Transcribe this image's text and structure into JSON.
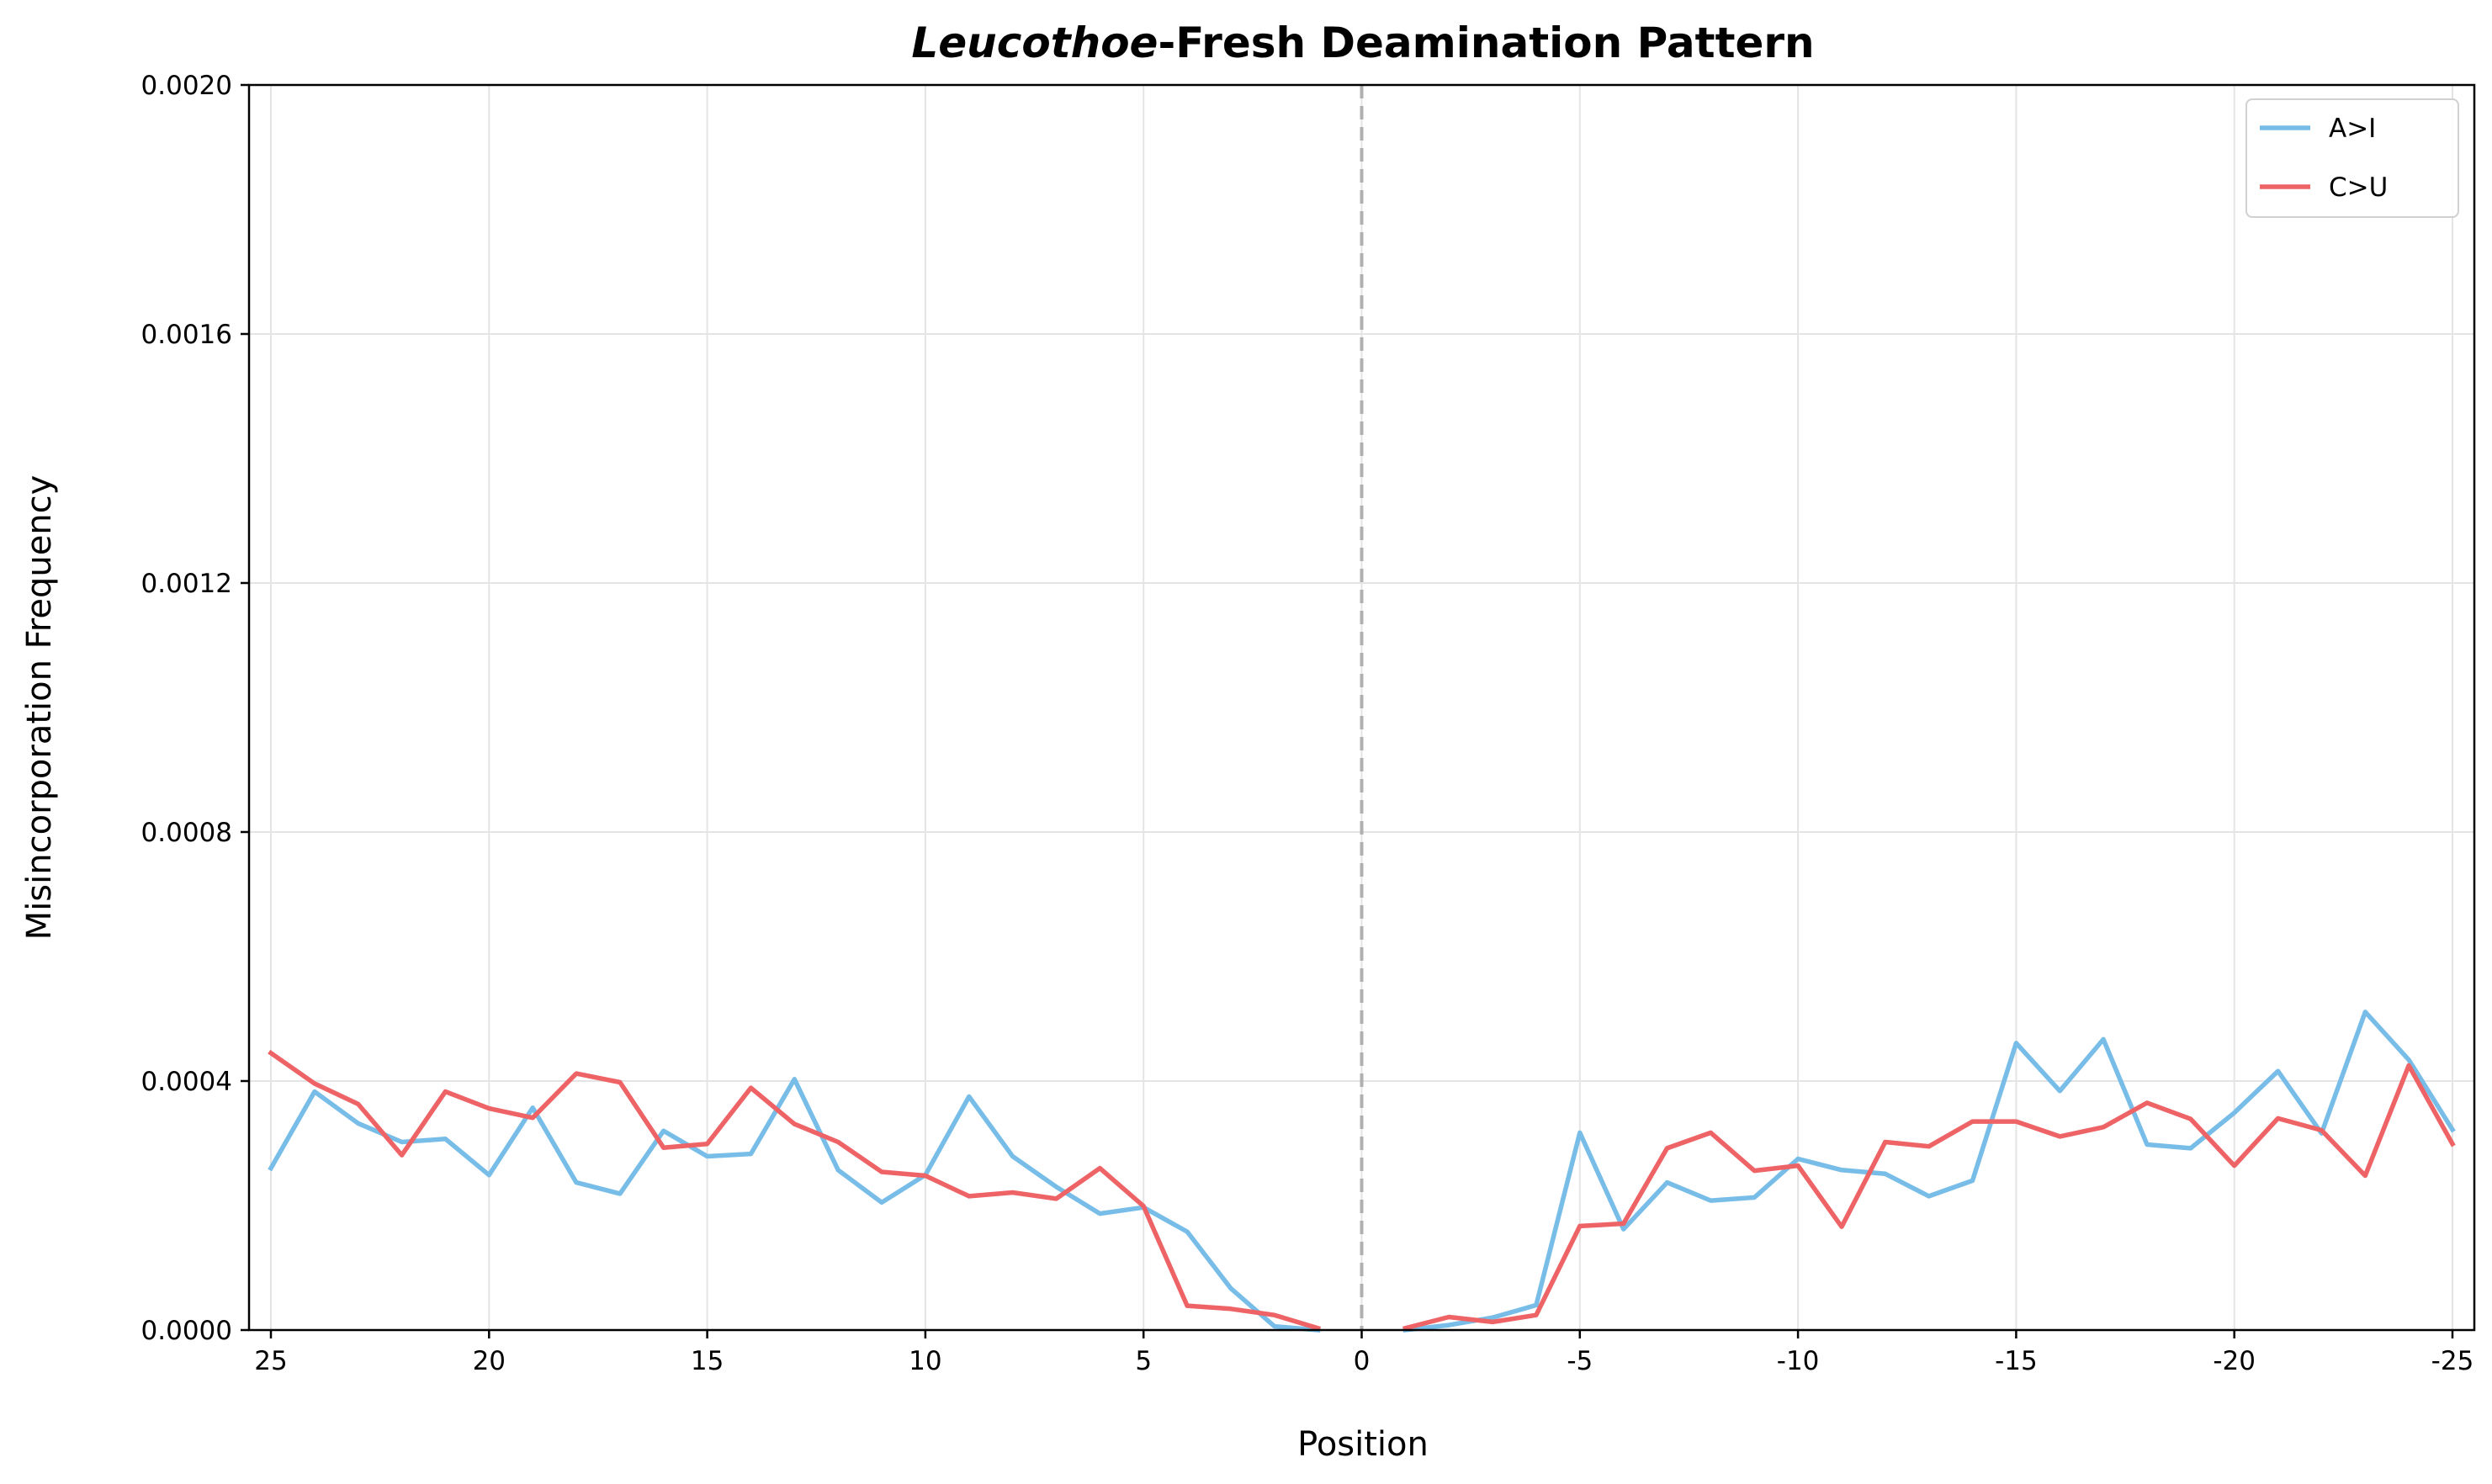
{
  "chart_data": {
    "type": "line",
    "title_italic": "Leucothoe",
    "title_rest": "-Fresh Deamination Pattern",
    "xlabel": "Position",
    "ylabel": "Misincorporation Frequency",
    "ylim": [
      0,
      0.002
    ],
    "yticks": [
      {
        "value": 0.0,
        "label": "0.0000"
      },
      {
        "value": 0.0004,
        "label": "0.0004"
      },
      {
        "value": 0.0008,
        "label": "0.0008"
      },
      {
        "value": 0.0012,
        "label": "0.0012"
      },
      {
        "value": 0.0016,
        "label": "0.0016"
      },
      {
        "value": 0.002,
        "label": "0.0020"
      }
    ],
    "xticks": [
      {
        "value": 25,
        "label": "25"
      },
      {
        "value": 20,
        "label": "20"
      },
      {
        "value": 15,
        "label": "15"
      },
      {
        "value": 10,
        "label": "10"
      },
      {
        "value": 5,
        "label": "5"
      },
      {
        "value": 0,
        "label": "0"
      },
      {
        "value": -5,
        "label": "-5"
      },
      {
        "value": -10,
        "label": "-10"
      },
      {
        "value": -15,
        "label": "-15"
      },
      {
        "value": -20,
        "label": "-20"
      },
      {
        "value": -25,
        "label": "-25"
      }
    ],
    "grid": true,
    "legend_position": "top-right",
    "center_line": {
      "x": 0,
      "style": "dashed",
      "color": "#b0b0b0"
    },
    "series": [
      {
        "name": "A>I",
        "color": "#77bde8",
        "segments": [
          {
            "x": [
              25,
              24,
              23,
              22,
              21,
              20,
              19,
              18,
              17,
              16,
              15,
              14,
              13,
              12,
              11,
              10,
              9,
              8,
              7,
              6,
              5,
              4,
              3,
              2,
              1
            ],
            "y": [
              0.00026,
              0.000383,
              0.000332,
              0.000302,
              0.000307,
              0.000249,
              0.000357,
              0.000237,
              0.000219,
              0.00032,
              0.000279,
              0.000283,
              0.000403,
              0.000257,
              0.000205,
              0.000249,
              0.000375,
              0.000279,
              0.00023,
              0.000187,
              0.000197,
              0.000158,
              6.7e-05,
              6e-06,
              0.0
            ]
          },
          {
            "x": [
              -1,
              -2,
              -3,
              -4,
              -5,
              -6,
              -7,
              -8,
              -9,
              -10,
              -11,
              -12,
              -13,
              -14,
              -15,
              -16,
              -17,
              -18,
              -19,
              -20,
              -21,
              -22,
              -23,
              -24,
              -25
            ],
            "y": [
              0.0,
              8e-06,
              2e-05,
              4e-05,
              0.000317,
              0.000162,
              0.000237,
              0.000208,
              0.000213,
              0.000275,
              0.000257,
              0.000251,
              0.000215,
              0.00024,
              0.000461,
              0.000384,
              0.000467,
              0.000298,
              0.000292,
              0.000349,
              0.000416,
              0.000316,
              0.000511,
              0.000434,
              0.000322
            ]
          }
        ]
      },
      {
        "name": "C>U",
        "color": "#ee6366",
        "segments": [
          {
            "x": [
              25,
              24,
              23,
              22,
              21,
              20,
              19,
              18,
              17,
              16,
              15,
              14,
              13,
              12,
              11,
              10,
              9,
              8,
              7,
              6,
              5,
              4,
              3,
              2,
              1
            ],
            "y": [
              0.000445,
              0.000396,
              0.000363,
              0.000281,
              0.000383,
              0.000356,
              0.000341,
              0.000412,
              0.000398,
              0.000293,
              0.000299,
              0.000389,
              0.000331,
              0.000302,
              0.000254,
              0.000248,
              0.000215,
              0.000221,
              0.000211,
              0.00026,
              0.000199,
              3.9e-05,
              3.4e-05,
              2.4e-05,
              3e-06
            ]
          },
          {
            "x": [
              -1,
              -2,
              -3,
              -4,
              -5,
              -6,
              -7,
              -8,
              -9,
              -10,
              -11,
              -12,
              -13,
              -14,
              -15,
              -16,
              -17,
              -18,
              -19,
              -20,
              -21,
              -22,
              -23,
              -24,
              -25
            ],
            "y": [
              3e-06,
              2.1e-05,
              1.3e-05,
              2.4e-05,
              0.000167,
              0.000171,
              0.000292,
              0.000317,
              0.000256,
              0.000264,
              0.000166,
              0.000302,
              0.000295,
              0.000335,
              0.000335,
              0.000311,
              0.000326,
              0.000365,
              0.000339,
              0.000264,
              0.00034,
              0.000321,
              0.000248,
              0.000425,
              0.000299
            ]
          }
        ]
      }
    ]
  }
}
